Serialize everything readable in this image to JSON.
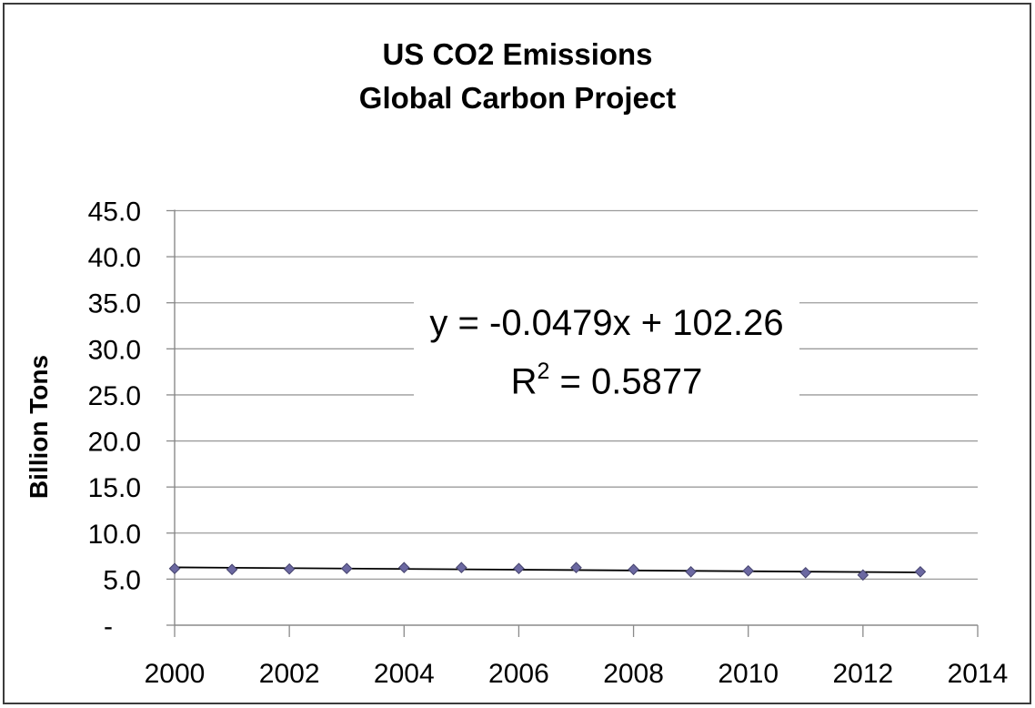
{
  "chart_data": {
    "type": "scatter",
    "title": "US CO2 Emissions",
    "subtitle": "Global Carbon Project",
    "ylabel": "Billion Tons",
    "xlabel": "",
    "x": [
      2000,
      2001,
      2002,
      2003,
      2004,
      2005,
      2006,
      2007,
      2008,
      2009,
      2010,
      2011,
      2012,
      2013
    ],
    "series": [
      {
        "name": "US CO2 Emissions (Billion Tons)",
        "values": [
          6.15,
          6.05,
          6.1,
          6.15,
          6.25,
          6.25,
          6.15,
          6.25,
          6.05,
          5.8,
          5.9,
          5.7,
          5.45,
          5.8
        ]
      }
    ],
    "trendline": {
      "equation": "y = -0.0479x + 102.26",
      "r_squared": "0.5877",
      "slope": -0.0479,
      "intercept": 102.26
    },
    "xlim": [
      2000,
      2014
    ],
    "ylim": [
      0,
      45
    ],
    "grid": "horizontal-only",
    "legend": "none",
    "marker": "diamond",
    "yticks": [
      {
        "value": 0,
        "label": "-"
      },
      {
        "value": 5,
        "label": "5.0"
      },
      {
        "value": 10,
        "label": "10.0"
      },
      {
        "value": 15,
        "label": "15.0"
      },
      {
        "value": 20,
        "label": "20.0"
      },
      {
        "value": 25,
        "label": "25.0"
      },
      {
        "value": 30,
        "label": "30.0"
      },
      {
        "value": 35,
        "label": "35.0"
      },
      {
        "value": 40,
        "label": "40.0"
      },
      {
        "value": 45,
        "label": "45.0"
      }
    ],
    "xticks": [
      {
        "value": 2000,
        "label": "2000"
      },
      {
        "value": 2002,
        "label": "2002"
      },
      {
        "value": 2004,
        "label": "2004"
      },
      {
        "value": 2006,
        "label": "2006"
      },
      {
        "value": 2008,
        "label": "2008"
      },
      {
        "value": 2010,
        "label": "2010"
      },
      {
        "value": 2012,
        "label": "2012"
      },
      {
        "value": 2014,
        "label": "2014"
      }
    ],
    "colors": {
      "marker_fill": "#6b68a1",
      "marker_stroke": "#45436d",
      "gridline": "#9b9b9b",
      "axis": "#8a8a8a",
      "trendline": "#000000",
      "text": "#000000",
      "background": "#ffffff"
    }
  },
  "annotation": {
    "equation_line1": "y = -0.0479x + 102.26",
    "r_prefix": "R",
    "r_sup": "2",
    "r_rest": " = 0.5877"
  }
}
